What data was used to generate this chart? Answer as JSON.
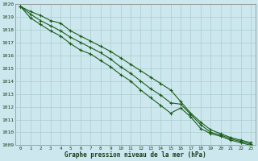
{
  "xlabel": "Graphe pression niveau de la mer (hPa)",
  "background_color": "#cce8ee",
  "grid_color": "#aacccc",
  "line_color": "#1a5c1a",
  "marker_color": "#1a5c1a",
  "x": [
    0,
    1,
    2,
    3,
    4,
    5,
    6,
    7,
    8,
    9,
    10,
    11,
    12,
    13,
    14,
    15,
    16,
    17,
    18,
    19,
    20,
    21,
    22,
    23
  ],
  "line1": [
    1019.8,
    1019.4,
    1019.1,
    1018.7,
    1018.5,
    1017.9,
    1017.5,
    1017.1,
    1016.7,
    1016.3,
    1015.8,
    1015.3,
    1014.8,
    1014.3,
    1013.8,
    1013.3,
    1012.4,
    1011.5,
    1010.8,
    1010.2,
    1009.9,
    1009.6,
    1009.4,
    1009.2
  ],
  "line2": [
    1019.8,
    1019.2,
    1018.7,
    1018.3,
    1017.9,
    1017.4,
    1017.0,
    1016.6,
    1016.2,
    1015.7,
    1015.1,
    1014.6,
    1014.0,
    1013.4,
    1012.9,
    1012.3,
    1012.2,
    1011.4,
    1010.6,
    1010.0,
    1009.8,
    1009.5,
    1009.3,
    1009.1
  ],
  "line3": [
    1019.8,
    1018.9,
    1018.4,
    1017.9,
    1017.5,
    1016.9,
    1016.4,
    1016.1,
    1015.6,
    1015.1,
    1014.5,
    1014.0,
    1013.3,
    1012.7,
    1012.1,
    1011.5,
    1011.9,
    1011.2,
    1010.3,
    1009.9,
    1009.7,
    1009.4,
    1009.2,
    1009.0
  ],
  "ylim": [
    1009,
    1020
  ],
  "xlim": [
    -0.5,
    23.5
  ],
  "yticks": [
    1009,
    1010,
    1011,
    1012,
    1013,
    1014,
    1015,
    1016,
    1017,
    1018,
    1019,
    1020
  ],
  "xticks": [
    0,
    1,
    2,
    3,
    4,
    5,
    6,
    7,
    8,
    9,
    10,
    11,
    12,
    13,
    14,
    15,
    16,
    17,
    18,
    19,
    20,
    21,
    22,
    23
  ]
}
